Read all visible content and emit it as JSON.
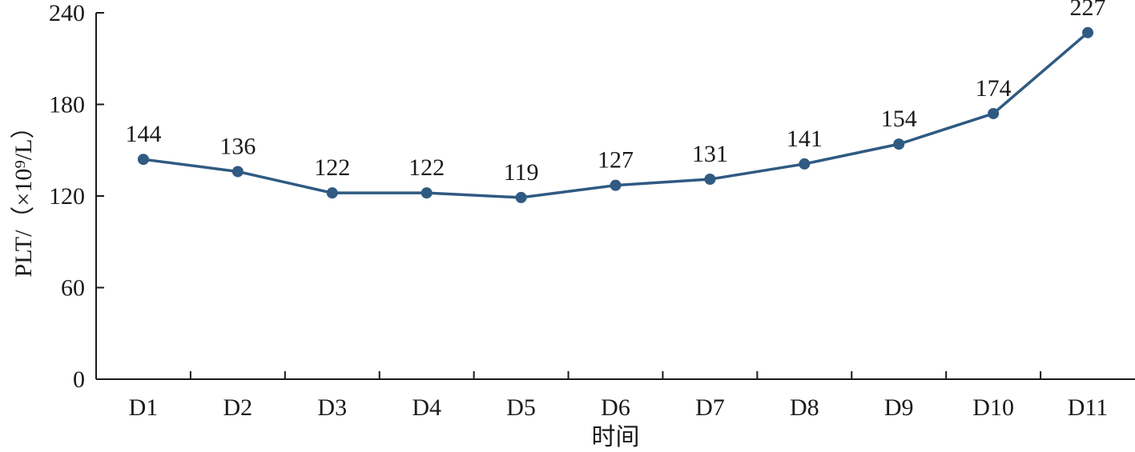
{
  "chart_data": {
    "type": "line",
    "categories": [
      "D1",
      "D2",
      "D3",
      "D4",
      "D5",
      "D6",
      "D7",
      "D8",
      "D9",
      "D10",
      "D11"
    ],
    "series": [
      {
        "values": [
          144,
          136,
          122,
          122,
          119,
          127,
          131,
          141,
          154,
          174,
          227
        ]
      }
    ],
    "data_labels": [
      "144",
      "136",
      "122",
      "122",
      "119",
      "127",
      "131",
      "141",
      "154",
      "174",
      "227"
    ],
    "xlabel": "时间",
    "ylabel": "PLT/（×10⁹/L）",
    "ylim": [
      0,
      240
    ],
    "yticks": [
      0,
      60,
      120,
      180,
      240
    ],
    "grid": false,
    "line_color": "#2f5a82",
    "axis_color": "#1a1a1a"
  }
}
